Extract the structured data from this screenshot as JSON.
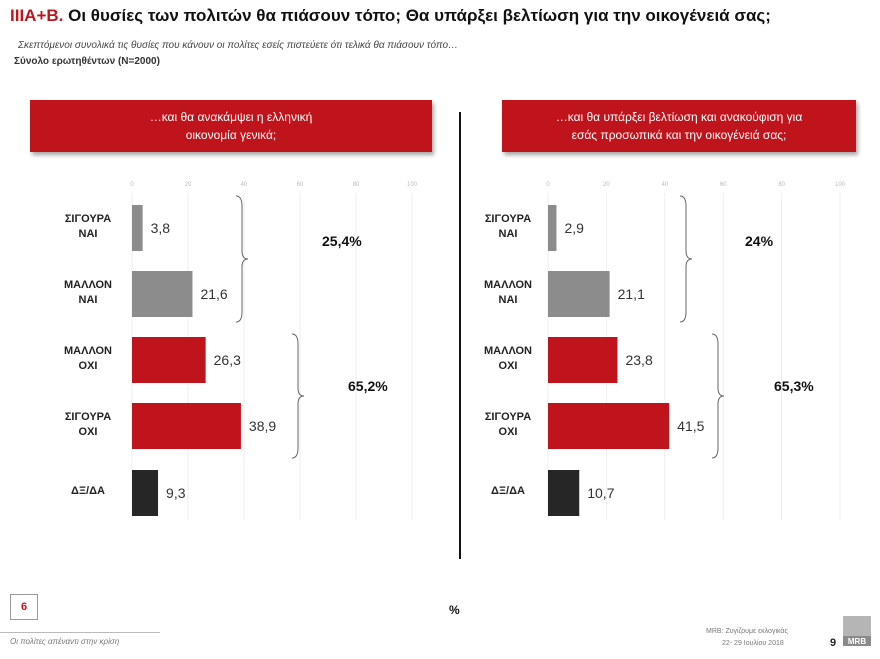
{
  "title": {
    "code": "ΙΙΙΑ+Β.",
    "text": "Οι θυσίες των πολιτών θα πιάσουν τόπο; Θα υπάρξει βελτίωση για την οικογένειά σας;"
  },
  "subtitle": "Σκεπτόμενοι  συνολικά τις θυσίες που κάνουν οι πολίτες εσείς  πιστεύετε ότι τελικά θα πιάσουν τόπο…",
  "base": "Σύνολο ερωτηθέντων (Ν=2000)",
  "colors": {
    "accent": "#c0141c",
    "positive": "#8c8c8c",
    "negative": "#c0141c",
    "dkna": "#262626"
  },
  "chart_data": [
    {
      "type": "bar",
      "orientation": "horizontal",
      "title_lines": [
        "…και θα ανακάμψει η ελληνική",
        "οικονομία γενικά;"
      ],
      "categories": [
        [
          "ΣΙΓΟΥΡΑ",
          "ΝΑΙ"
        ],
        [
          "ΜΑΛΛΟΝ",
          "ΝΑΙ"
        ],
        [
          "ΜΑΛΛΟΝ",
          "ΟΧΙ"
        ],
        [
          "ΣΙΓΟΥΡΑ",
          "ΟΧΙ"
        ],
        [
          "ΔΞ/ΔΑ"
        ]
      ],
      "values": [
        3.8,
        21.6,
        26.3,
        38.9,
        9.3
      ],
      "value_labels": [
        "3,8",
        "21,6",
        "26,3",
        "38,9",
        "9,3"
      ],
      "colors": [
        "#8c8c8c",
        "#8c8c8c",
        "#c0141c",
        "#c0141c",
        "#262626"
      ],
      "xticks": [
        "0",
        "20",
        "40",
        "60",
        "80",
        "100"
      ],
      "xlim": [
        0,
        100
      ],
      "group_totals": [
        {
          "label": "25,4%",
          "covers": [
            0,
            1
          ]
        },
        {
          "label": "65,2%",
          "covers": [
            2,
            3
          ]
        }
      ]
    },
    {
      "type": "bar",
      "orientation": "horizontal",
      "title_lines": [
        "…και θα υπάρξει βελτίωση και ανακούφιση για",
        "εσάς προσωπικά και την οικογένειά σας;"
      ],
      "categories": [
        [
          "ΣΙΓΟΥΡΑ",
          "ΝΑΙ"
        ],
        [
          "ΜΑΛΛΟΝ",
          "ΝΑΙ"
        ],
        [
          "ΜΑΛΛΟΝ",
          "ΟΧΙ"
        ],
        [
          "ΣΙΓΟΥΡΑ",
          "ΟΧΙ"
        ],
        [
          "ΔΞ/ΔΑ"
        ]
      ],
      "values": [
        2.9,
        21.1,
        23.8,
        41.5,
        10.7
      ],
      "value_labels": [
        "2,9",
        "21,1",
        "23,8",
        "41,5",
        "10,7"
      ],
      "colors": [
        "#8c8c8c",
        "#8c8c8c",
        "#c0141c",
        "#c0141c",
        "#262626"
      ],
      "xticks": [
        "0",
        "20",
        "40",
        "60",
        "80",
        "100"
      ],
      "xlim": [
        0,
        100
      ],
      "group_totals": [
        {
          "label": "24%",
          "covers": [
            0,
            1
          ]
        },
        {
          "label": "65,3%",
          "covers": [
            2,
            3
          ]
        }
      ]
    }
  ],
  "footer": {
    "page_box": "6",
    "unit": "%",
    "left_note": "Οι πολίτες απέναντι στην κρίση",
    "right_line1": "MRB: Ζυγίζουμε εκλογικάς",
    "right_line2": "22- 29 Ιουλίου 2018",
    "page_number": "9",
    "logo_text": "MRB"
  }
}
